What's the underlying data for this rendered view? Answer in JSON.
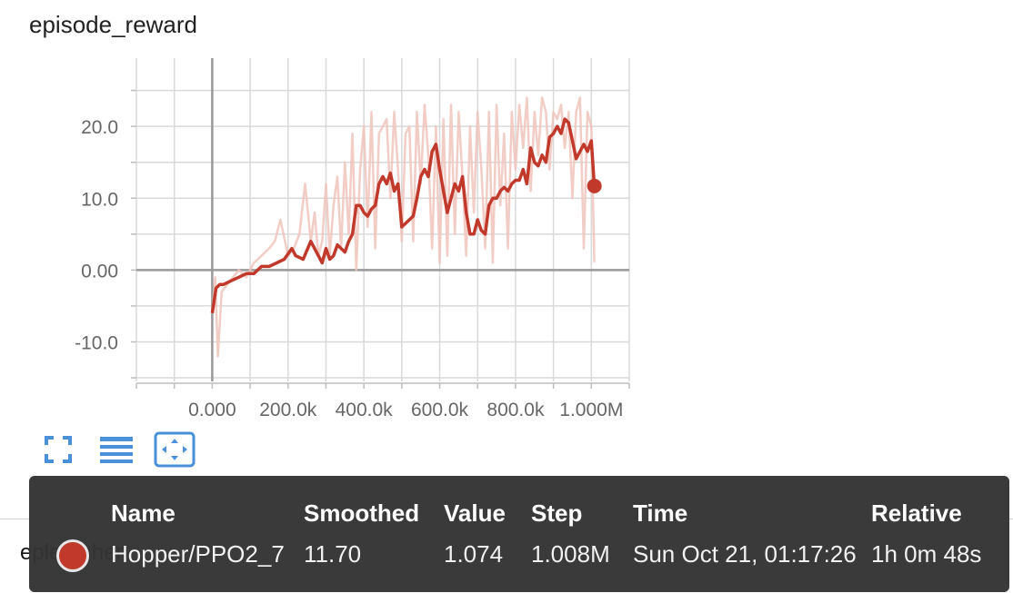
{
  "chart_data": {
    "type": "line",
    "title": "episode_reward",
    "xlabel": "",
    "ylabel": "",
    "x_ticks": [
      "0.000",
      "200.0k",
      "400.0k",
      "600.0k",
      "800.0k",
      "1.000M"
    ],
    "y_ticks": [
      "-10.0",
      "0.00",
      "10.0",
      "20.0"
    ],
    "xlim": [
      -200000,
      1100000
    ],
    "ylim": [
      -15.5,
      29.5
    ],
    "grid": true,
    "series": [
      {
        "name": "Hopper/PPO2_7",
        "kind": "raw",
        "x": [
          0,
          8000,
          15000,
          25000,
          40000,
          55000,
          70000,
          90000,
          110000,
          130000,
          150000,
          165000,
          180000,
          200000,
          215000,
          230000,
          245000,
          260000,
          270000,
          280000,
          290000,
          300000,
          310000,
          320000,
          330000,
          340000,
          350000,
          360000,
          370000,
          380000,
          390000,
          400000,
          410000,
          420000,
          430000,
          440000,
          450000,
          460000,
          470000,
          480000,
          490000,
          500000,
          510000,
          520000,
          530000,
          540000,
          550000,
          560000,
          570000,
          580000,
          590000,
          600000,
          610000,
          620000,
          630000,
          640000,
          650000,
          660000,
          670000,
          680000,
          690000,
          700000,
          710000,
          720000,
          730000,
          740000,
          750000,
          760000,
          770000,
          780000,
          790000,
          800000,
          810000,
          820000,
          830000,
          840000,
          850000,
          860000,
          870000,
          880000,
          890000,
          900000,
          910000,
          920000,
          930000,
          940000,
          950000,
          960000,
          970000,
          980000,
          990000,
          1000000,
          1008000
        ],
        "values": [
          -6,
          -1,
          -12,
          -3,
          -2,
          -1,
          0,
          -1,
          1,
          2,
          3,
          4,
          7,
          2,
          3,
          5,
          12,
          4,
          8,
          2,
          4,
          12,
          2,
          9,
          13,
          3,
          15,
          5,
          19,
          0,
          14,
          20,
          6,
          22,
          3,
          19,
          20,
          21,
          10,
          22,
          14,
          4,
          19,
          20,
          4,
          22,
          12,
          23,
          16,
          3,
          20,
          1,
          21,
          2,
          23,
          5,
          22,
          13,
          2,
          20,
          8,
          22,
          14,
          3,
          22,
          1,
          23,
          9,
          19,
          3,
          22,
          14,
          23,
          17,
          24,
          11,
          22,
          16,
          24,
          22,
          14,
          22,
          21,
          23,
          17,
          22,
          10,
          22,
          24,
          3,
          22,
          20,
          1.074
        ]
      },
      {
        "name": "Hopper/PPO2_7",
        "kind": "smoothed",
        "x": [
          0,
          10000,
          20000,
          30000,
          50000,
          70000,
          90000,
          110000,
          130000,
          150000,
          170000,
          190000,
          210000,
          220000,
          240000,
          260000,
          280000,
          290000,
          300000,
          310000,
          320000,
          330000,
          340000,
          350000,
          360000,
          370000,
          380000,
          390000,
          400000,
          410000,
          420000,
          430000,
          440000,
          450000,
          460000,
          470000,
          480000,
          490000,
          500000,
          510000,
          520000,
          530000,
          540000,
          550000,
          560000,
          570000,
          580000,
          590000,
          600000,
          610000,
          620000,
          630000,
          640000,
          650000,
          660000,
          670000,
          680000,
          690000,
          700000,
          710000,
          720000,
          730000,
          740000,
          750000,
          760000,
          770000,
          780000,
          790000,
          800000,
          810000,
          820000,
          830000,
          840000,
          850000,
          860000,
          870000,
          880000,
          890000,
          900000,
          910000,
          920000,
          930000,
          940000,
          950000,
          960000,
          970000,
          980000,
          990000,
          1000000,
          1008000
        ],
        "values": [
          -6,
          -2.5,
          -2,
          -2,
          -1.5,
          -1,
          -0.5,
          -0.5,
          0.5,
          0.5,
          1,
          1.5,
          3,
          2,
          1.5,
          4,
          2,
          1,
          3,
          1.5,
          2,
          3.5,
          3,
          2.5,
          4,
          5,
          9,
          9,
          8,
          7.5,
          8.5,
          9,
          12,
          13,
          12,
          13.5,
          11,
          12,
          6,
          6.5,
          7,
          7.5,
          10,
          13,
          14,
          13,
          16.5,
          17.5,
          14,
          11,
          8,
          10,
          12,
          11,
          13,
          8,
          5,
          5,
          7,
          5.5,
          5,
          9,
          10,
          10,
          11,
          11.5,
          11,
          12,
          12.5,
          12.5,
          14,
          12,
          17,
          15,
          14.5,
          16,
          15,
          18.5,
          19,
          20,
          19,
          21,
          20.5,
          18,
          15.5,
          16.5,
          17.5,
          16.5,
          18,
          11.7
        ]
      }
    ]
  },
  "colors": {
    "smoothed": "#c0392b",
    "raw": "#efc4bc",
    "grid": "#d9d9d9",
    "axis": "#999999",
    "accent": "#4a90d9"
  },
  "toolbar": {
    "icons": [
      "fullscreen-icon",
      "toggle-data-table-icon",
      "fit-domain-icon"
    ]
  },
  "hidden_row": {
    "label": "eplenmhen"
  },
  "tooltip": {
    "headers": {
      "name": "Name",
      "smoothed": "Smoothed",
      "value": "Value",
      "step": "Step",
      "time": "Time",
      "relative": "Relative"
    },
    "row": {
      "name": "Hopper/PPO2_7",
      "smoothed": "11.70",
      "value": "1.074",
      "step": "1.008M",
      "time": "Sun Oct 21, 01:17:26",
      "relative": "1h 0m 48s",
      "color": "#c0392b"
    }
  }
}
